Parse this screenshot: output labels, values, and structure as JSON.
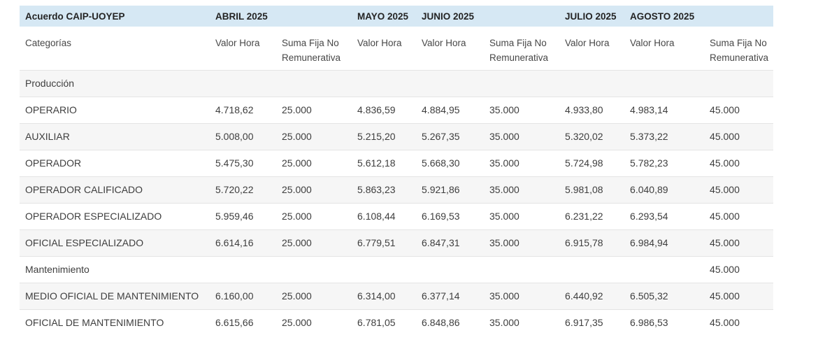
{
  "colors": {
    "header_bg": "#d6e8f4",
    "stripe_bg": "#f6f6f6",
    "border": "#e4e4e4",
    "title_text": "#242424",
    "subheader_text": "#474747",
    "body_text": "#3e3e3e",
    "page_bg": "#ffffff"
  },
  "table": {
    "title": "Acuerdo CAIP-UOYEP",
    "month_headers": [
      {
        "label": "ABRIL 2025",
        "colspan": 2
      },
      {
        "label": "MAYO 2025",
        "colspan": 1
      },
      {
        "label": "JUNIO 2025",
        "colspan": 2
      },
      {
        "label": "JULIO 2025",
        "colspan": 1
      },
      {
        "label": "AGOSTO 2025",
        "colspan": 2
      }
    ],
    "column_headers": [
      "Categorías",
      "Valor Hora",
      "Suma Fija No Remunerativa",
      "Valor Hora",
      "Valor Hora",
      "Suma Fija No Remunerativa",
      "Valor Hora",
      "Valor Hora",
      "Suma Fija No Remunerativa"
    ],
    "rows": [
      {
        "type": "section",
        "cells": [
          "Producción",
          "",
          "",
          "",
          "",
          "",
          "",
          "",
          ""
        ]
      },
      {
        "type": "data",
        "cells": [
          "OPERARIO",
          "4.718,62",
          "25.000",
          "4.836,59",
          "4.884,95",
          "35.000",
          "4.933,80",
          "4.983,14",
          "45.000"
        ]
      },
      {
        "type": "data",
        "cells": [
          "AUXILIAR",
          "5.008,00",
          "25.000",
          "5.215,20",
          "5.267,35",
          "35.000",
          "5.320,02",
          "5.373,22",
          "45.000"
        ]
      },
      {
        "type": "data",
        "cells": [
          "OPERADOR",
          "5.475,30",
          "25.000",
          "5.612,18",
          "5.668,30",
          "35.000",
          "5.724,98",
          "5.782,23",
          "45.000"
        ]
      },
      {
        "type": "data",
        "cells": [
          "OPERADOR CALIFICADO",
          "5.720,22",
          "25.000",
          "5.863,23",
          "5.921,86",
          "35.000",
          "5.981,08",
          "6.040,89",
          "45.000"
        ]
      },
      {
        "type": "data",
        "cells": [
          "OPERADOR ESPECIALIZADO",
          "5.959,46",
          "25.000",
          "6.108,44",
          "6.169,53",
          "35.000",
          "6.231,22",
          "6.293,54",
          "45.000"
        ]
      },
      {
        "type": "data",
        "cells": [
          "OFICIAL ESPECIALIZADO",
          "6.614,16",
          "25.000",
          "6.779,51",
          "6.847,31",
          "35.000",
          "6.915,78",
          "6.984,94",
          "45.000"
        ]
      },
      {
        "type": "section",
        "cells": [
          "Mantenimiento",
          "",
          "",
          "",
          "",
          "",
          "",
          "",
          "45.000"
        ]
      },
      {
        "type": "data",
        "cells": [
          "MEDIO OFICIAL DE MANTENIMIENTO",
          "6.160,00",
          "25.000",
          "6.314,00",
          "6.377,14",
          "35.000",
          "6.440,92",
          "6.505,32",
          "45.000"
        ]
      },
      {
        "type": "data",
        "cells": [
          "OFICIAL DE MANTENIMIENTO",
          "6.615,66",
          "25.000",
          "6.781,05",
          "6.848,86",
          "35.000",
          "6.917,35",
          "6.986,53",
          "45.000"
        ]
      }
    ]
  }
}
